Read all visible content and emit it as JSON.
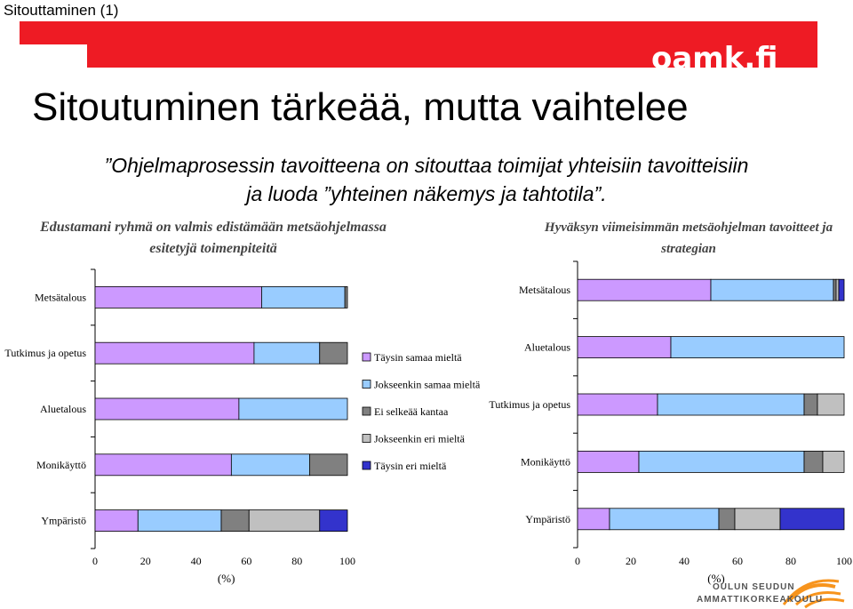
{
  "slide_label": "Sitouttaminen (1)",
  "brand": "oamk.fi",
  "title": "Sitoutuminen tärkeää, mutta vaihtelee",
  "subtitle_line1": "”Ohjelmaprosessin tavoitteena on sitouttaa toimijat yhteisiin tavoitteisiin",
  "subtitle_line2": "ja luoda ”yhteinen näkemys ja tahtotila”.",
  "logo": {
    "line1": "OULUN SEUDUN",
    "line2": "AMMATTIKORKEAKOULU"
  },
  "colors": {
    "taysin_samaa": "#cc99ff",
    "jokseenkin_samaa": "#99ccff",
    "ei_selkeaa": "#808080",
    "jokseenkin_eri": "#c0c0c0",
    "taysin_eri": "#3333cc"
  },
  "legend": [
    {
      "label": "Täysin samaa mieltä",
      "color": "#cc99ff"
    },
    {
      "label": "Jokseenkin samaa mieltä",
      "color": "#99ccff"
    },
    {
      "label": "Ei selkeää kantaa",
      "color": "#808080"
    },
    {
      "label": "Jokseenkin eri mieltä",
      "color": "#c0c0c0"
    },
    {
      "label": "Täysin eri mieltä",
      "color": "#3333cc"
    }
  ],
  "chart_data": [
    {
      "type": "bar",
      "orientation": "horizontal-stacked-100",
      "title": "Edustamani ryhmä on valmis edistämään metsäohjelmassa esitetyjä toimenpiteitä",
      "xlabel": "(%)",
      "xlim": [
        0,
        100
      ],
      "xticks": [
        "0",
        "20",
        "40",
        "60",
        "80",
        "100"
      ],
      "categories": [
        "Metsätalous",
        "Tutkimus ja opetus",
        "Aluetalous",
        "Monikäyttö",
        "Ympäristö"
      ],
      "series": [
        {
          "name": "Täysin samaa mieltä",
          "values": [
            66,
            63,
            57,
            54,
            17
          ]
        },
        {
          "name": "Jokseenkin samaa mieltä",
          "values": [
            33,
            26,
            43,
            31,
            33
          ]
        },
        {
          "name": "Ei selkeää kantaa",
          "values": [
            1,
            11,
            0,
            15,
            11
          ]
        },
        {
          "name": "Jokseenkin eri mieltä",
          "values": [
            0,
            0,
            0,
            0,
            28
          ]
        },
        {
          "name": "Täysin eri mieltä",
          "values": [
            0,
            0,
            0,
            0,
            11
          ]
        }
      ]
    },
    {
      "type": "bar",
      "orientation": "horizontal-stacked-100",
      "title": "Hyväksyn viimeisimmän metsäohjelman tavoitteet ja strategian",
      "xlabel": "(%)",
      "xlim": [
        0,
        100
      ],
      "xticks": [
        "0",
        "20",
        "40",
        "60",
        "80",
        "100"
      ],
      "categories": [
        "Metsätalous",
        "Aluetalous",
        "Tutkimus ja opetus",
        "Monikäyttö",
        "Ympäristö"
      ],
      "series": [
        {
          "name": "Täysin samaa mieltä",
          "values": [
            50,
            35,
            30,
            23,
            12
          ]
        },
        {
          "name": "Jokseenkin samaa mieltä",
          "values": [
            46,
            65,
            55,
            62,
            41
          ]
        },
        {
          "name": "Ei selkeää kantaa",
          "values": [
            1,
            0,
            5,
            7,
            6
          ]
        },
        {
          "name": "Jokseenkin eri mieltä",
          "values": [
            1,
            0,
            10,
            8,
            17
          ]
        },
        {
          "name": "Täysin eri mieltä",
          "values": [
            2,
            0,
            0,
            0,
            24
          ]
        }
      ]
    }
  ]
}
